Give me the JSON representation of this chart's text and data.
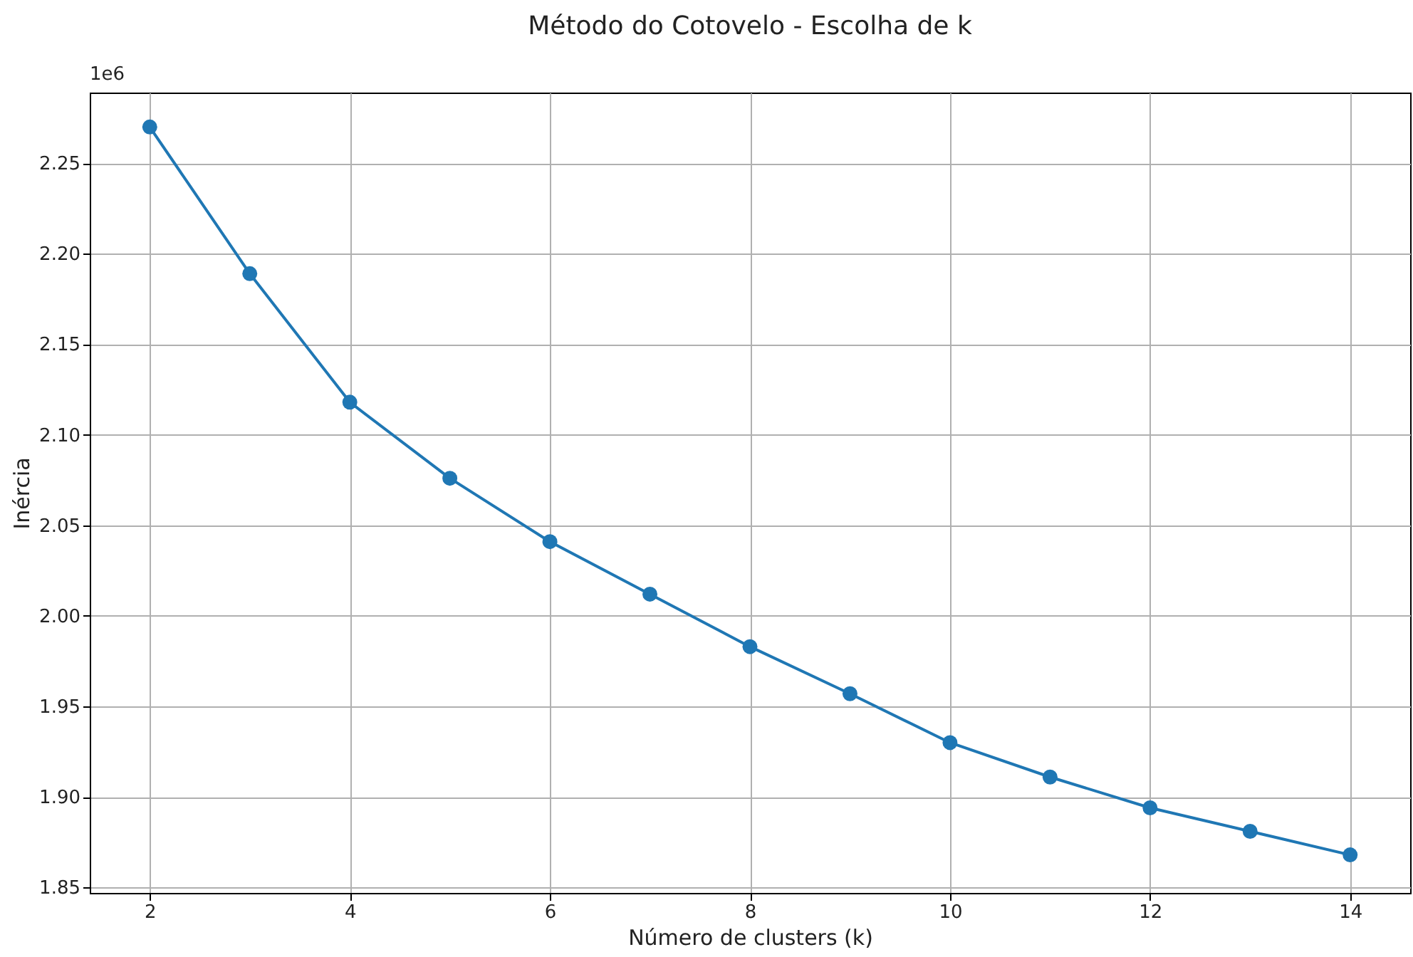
{
  "chart_data": {
    "type": "line",
    "title": "Método do Cotovelo - Escolha de k",
    "xlabel": "Número de clusters (k)",
    "ylabel": "Inércia",
    "annotations": [
      "1e6"
    ],
    "x": [
      2,
      3,
      4,
      5,
      6,
      7,
      8,
      9,
      10,
      11,
      12,
      13,
      14
    ],
    "series": [
      {
        "color": "#1f77b4",
        "values": [
          2.27,
          2.189,
          2.118,
          2.076,
          2.041,
          2.012,
          1.983,
          1.957,
          1.93,
          1.911,
          1.894,
          1.881,
          1.868
        ]
      }
    ],
    "xlim": [
      1.4,
      14.6
    ],
    "xticks": [
      2,
      4,
      6,
      8,
      10,
      12,
      14
    ],
    "ylim": [
      1.847,
      2.289
    ],
    "yticks": [
      1.85,
      {
        "value": 1.9,
        "label": "1.90"
      },
      1.95,
      {
        "value": 2,
        "label": "2.00"
      },
      2.05,
      {
        "value": 2.1,
        "label": "2.10"
      },
      2.15,
      {
        "value": 2.2,
        "label": "2.20"
      },
      2.25
    ],
    "grid": true,
    "marker": "circle",
    "line_style": "solid"
  }
}
